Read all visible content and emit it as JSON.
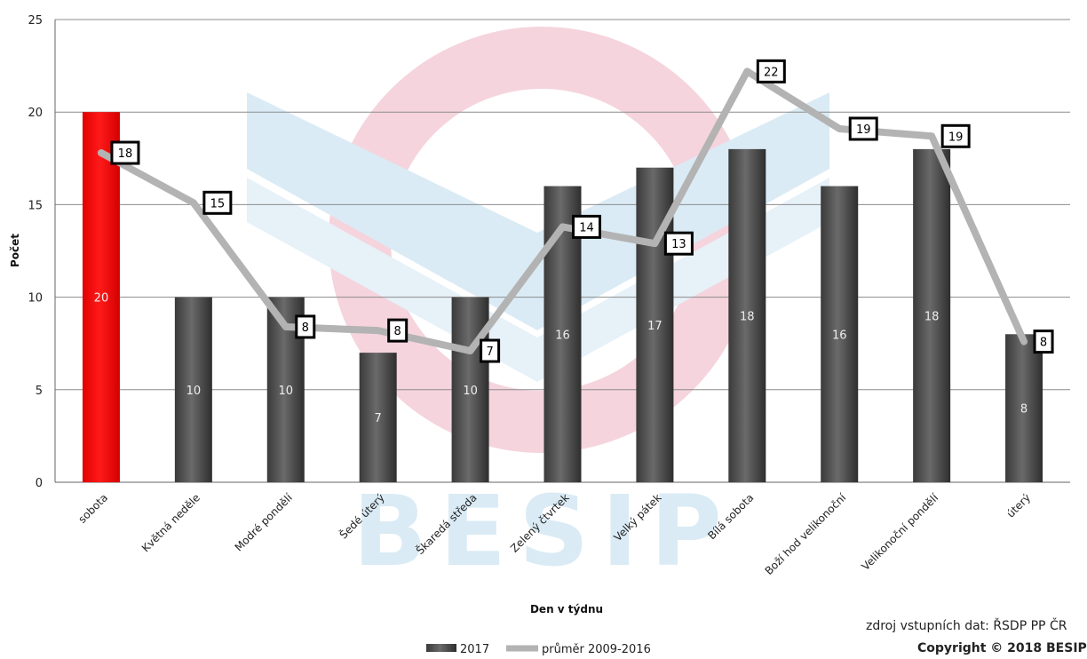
{
  "chart_data": {
    "type": "bar",
    "categories": [
      "sobota",
      "Květná neděle",
      "Modré pondělí",
      "Šedé úterý",
      "Škaredá středa",
      "Zelený čtvrtek",
      "Velký pátek",
      "Bílá sobota",
      "Boží hod velikonoční",
      "Velikonoční pondělí",
      "úterý"
    ],
    "series": [
      {
        "name": "2017",
        "type": "bar",
        "values": [
          20,
          10,
          10,
          7,
          10,
          16,
          17,
          18,
          16,
          18,
          8
        ],
        "color": "#555555",
        "highlight_index": 0,
        "highlight_color": "#ff0000"
      },
      {
        "name": "průměr 2009-2016",
        "type": "line",
        "values": [
          17.8,
          15.1,
          8.4,
          8.2,
          7.1,
          13.8,
          12.9,
          22.2,
          19.1,
          18.7,
          7.6
        ],
        "labels": [
          "18",
          "15",
          "8",
          "8",
          "7",
          "14",
          "13",
          "22",
          "19",
          "19",
          "8"
        ],
        "color": "#b3b3b3"
      }
    ],
    "xlabel": "Den v týdnu",
    "ylabel": "Počet",
    "ylim": [
      0,
      25
    ],
    "yticks": [
      0,
      5,
      10,
      15,
      20,
      25
    ],
    "grid": true,
    "legend": "bottom"
  },
  "watermark": {
    "text": "BESIP"
  },
  "footer": {
    "source": "zdroj vstupních dat: ŘSDP PP ČR",
    "copyright": "Copyright © 2018 BESIP"
  }
}
